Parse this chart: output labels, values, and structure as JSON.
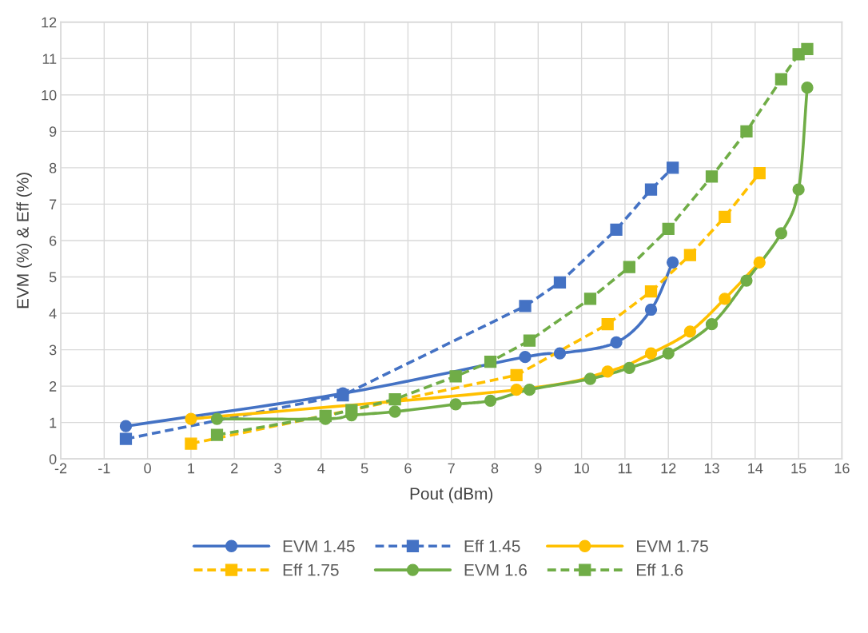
{
  "chart_data": {
    "type": "line",
    "xlabel": "Pout (dBm)",
    "ylabel": "EVM (%) & Eff (%)",
    "xlim": [
      -2,
      16
    ],
    "xticks": [
      -2,
      -1,
      0,
      1,
      2,
      3,
      4,
      5,
      6,
      7,
      8,
      9,
      10,
      11,
      12,
      13,
      14,
      15,
      16
    ],
    "ylim": [
      0,
      12
    ],
    "yticks": [
      0,
      1,
      2,
      3,
      4,
      5,
      6,
      7,
      8,
      9,
      10,
      11,
      12
    ],
    "grid": true,
    "legend": "bottom",
    "series": [
      {
        "name": "EVM 1.45",
        "color": "#4472c4",
        "marker": "circle",
        "line_style": "solid",
        "x": [
          -0.5,
          4.5,
          8.7,
          9.5,
          10.8,
          11.6,
          12.1
        ],
        "values": [
          0.9,
          1.8,
          2.8,
          2.9,
          3.2,
          4.1,
          5.4
        ]
      },
      {
        "name": "Eff 1.45",
        "color": "#4472c4",
        "marker": "square",
        "line_style": "dashed",
        "x": [
          -0.5,
          4.5,
          8.7,
          9.5,
          10.8,
          11.6,
          12.1
        ],
        "values": [
          0.55,
          1.75,
          4.2,
          4.85,
          6.3,
          7.4,
          8.0
        ]
      },
      {
        "name": "EVM 1.75",
        "color": "#ffc000",
        "marker": "circle",
        "line_style": "solid",
        "x": [
          1.0,
          8.5,
          10.6,
          11.6,
          12.5,
          13.3,
          14.1
        ],
        "values": [
          1.1,
          1.9,
          2.4,
          2.9,
          3.5,
          4.4,
          5.4
        ]
      },
      {
        "name": "Eff 1.75",
        "color": "#ffc000",
        "marker": "square",
        "line_style": "dashed",
        "x": [
          1.0,
          8.5,
          10.6,
          11.6,
          12.5,
          13.3,
          14.1
        ],
        "values": [
          0.42,
          2.3,
          3.7,
          4.6,
          5.6,
          6.65,
          7.85
        ]
      },
      {
        "name": "EVM 1.6",
        "color": "#70ad47",
        "marker": "circle",
        "line_style": "solid",
        "x": [
          1.6,
          4.1,
          4.7,
          5.7,
          7.1,
          7.9,
          8.8,
          10.2,
          11.1,
          12.0,
          13.0,
          13.8,
          14.6,
          15.0,
          15.2
        ],
        "values": [
          1.1,
          1.1,
          1.2,
          1.3,
          1.5,
          1.6,
          1.9,
          2.2,
          2.5,
          2.9,
          3.7,
          4.9,
          6.2,
          7.4,
          10.2
        ]
      },
      {
        "name": "Eff 1.6",
        "color": "#70ad47",
        "marker": "square",
        "line_style": "dashed",
        "x": [
          1.6,
          4.1,
          4.7,
          5.7,
          7.1,
          7.9,
          8.8,
          10.2,
          11.1,
          12.0,
          13.0,
          13.8,
          14.6,
          15.0,
          15.2
        ],
        "values": [
          0.66,
          1.18,
          1.34,
          1.64,
          2.27,
          2.67,
          3.25,
          4.4,
          5.27,
          6.32,
          7.76,
          9.0,
          10.43,
          11.12,
          11.26
        ]
      }
    ]
  }
}
